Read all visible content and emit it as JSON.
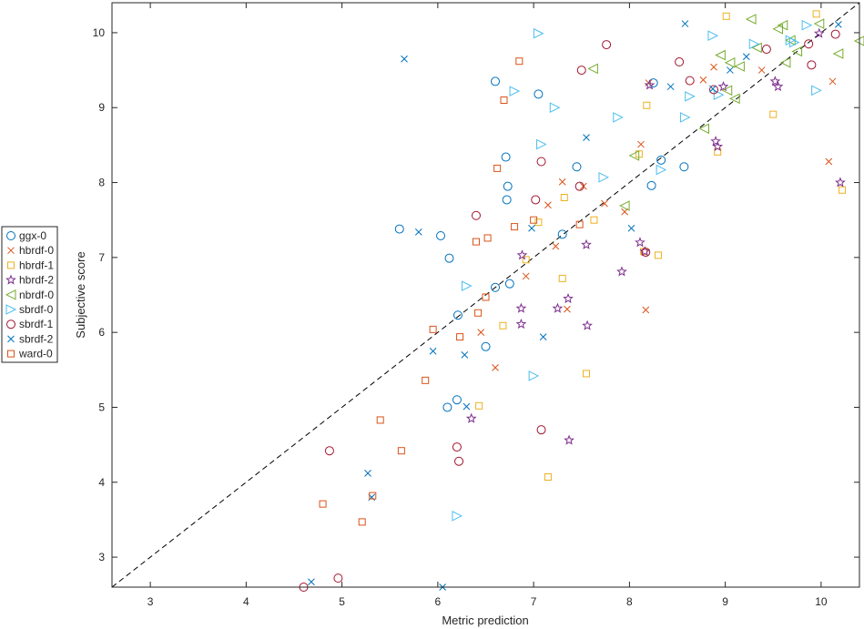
{
  "chart_data": {
    "type": "scatter",
    "xlabel": "Metric prediction",
    "ylabel": "Subjective score",
    "xlim": [
      2.6,
      10.4
    ],
    "ylim": [
      2.6,
      10.4
    ],
    "xticks": [
      3,
      4,
      5,
      6,
      7,
      8,
      9,
      10
    ],
    "yticks": [
      3,
      4,
      5,
      6,
      7,
      8,
      9,
      10
    ],
    "grid": false,
    "box": true,
    "reference_line": {
      "style": "dashed",
      "color": "#000000",
      "from": [
        2.6,
        2.6
      ],
      "to": [
        10.4,
        10.4
      ]
    },
    "legend_position": "outside-left",
    "series": [
      {
        "name": "ggx-0",
        "marker": "circle",
        "color": "#0072BD",
        "x": [
          5.6,
          6.03,
          6.12,
          6.21,
          6.1,
          6.2,
          6.5,
          6.6,
          6.6,
          6.72,
          6.71,
          6.73,
          6.75,
          7.05,
          7.3,
          7.45,
          8.25,
          8.33,
          8.23,
          8.57
        ],
        "y": [
          7.38,
          7.29,
          6.99,
          6.23,
          5.0,
          5.1,
          5.81,
          6.6,
          9.35,
          7.77,
          8.34,
          7.95,
          6.65,
          9.18,
          7.31,
          8.21,
          9.33,
          8.3,
          7.96,
          8.21
        ]
      },
      {
        "name": "hbrdf-0",
        "marker": "x",
        "color": "#D95319",
        "x": [
          6.45,
          6.6,
          6.92,
          7.15,
          7.23,
          7.3,
          7.35,
          7.52,
          7.74,
          7.95,
          8.12,
          8.17,
          8.2,
          8.77,
          8.88,
          9.38,
          10.12,
          10.08
        ],
        "y": [
          6.0,
          5.53,
          6.75,
          7.7,
          7.15,
          8.01,
          6.31,
          7.95,
          7.72,
          7.61,
          8.51,
          6.3,
          9.33,
          9.37,
          9.54,
          9.5,
          9.35,
          8.28
        ]
      },
      {
        "name": "hbrdf-1",
        "marker": "square",
        "color": "#EDB120",
        "x": [
          6.43,
          6.68,
          6.92,
          7.05,
          7.15,
          7.3,
          7.32,
          7.55,
          7.63,
          8.1,
          8.15,
          8.18,
          8.3,
          8.92,
          9.01,
          9.5,
          9.95,
          10.22
        ],
        "y": [
          5.02,
          6.09,
          6.97,
          7.47,
          4.07,
          6.72,
          7.8,
          5.45,
          7.5,
          8.38,
          7.08,
          9.03,
          7.03,
          8.41,
          10.22,
          8.91,
          10.25,
          7.9
        ]
      },
      {
        "name": "hbrdf-2",
        "marker": "star",
        "color": "#7E2F8E",
        "x": [
          6.35,
          6.87,
          6.87,
          6.88,
          7.25,
          7.36,
          7.37,
          7.55,
          7.56,
          7.92,
          8.11,
          8.16,
          8.21,
          8.9,
          8.92,
          8.98,
          9.52,
          9.55,
          9.98,
          10.2
        ],
        "y": [
          4.85,
          6.11,
          6.32,
          7.03,
          6.32,
          6.45,
          4.56,
          7.17,
          6.09,
          6.81,
          7.2,
          7.08,
          9.3,
          8.55,
          8.48,
          9.28,
          9.35,
          9.28,
          9.99,
          8.0
        ]
      },
      {
        "name": "nbrdf-0",
        "marker": "triangle-left",
        "color": "#77AC30",
        "x": [
          7.62,
          7.95,
          8.05,
          8.78,
          8.95,
          9.02,
          9.05,
          9.1,
          9.15,
          9.27,
          9.33,
          9.55,
          9.6,
          9.63,
          9.68,
          9.75,
          9.98,
          10.18,
          10.4
        ],
        "y": [
          9.52,
          7.69,
          8.36,
          8.72,
          9.7,
          9.23,
          9.6,
          9.12,
          9.55,
          10.18,
          9.8,
          10.05,
          10.1,
          9.6,
          9.9,
          9.75,
          10.12,
          9.72,
          9.89
        ]
      },
      {
        "name": "sbrdf-0",
        "marker": "triangle-right",
        "color": "#4DBEEE",
        "x": [
          6.2,
          6.3,
          6.8,
          7.0,
          7.05,
          7.08,
          7.22,
          7.73,
          7.88,
          8.33,
          8.58,
          8.63,
          8.87,
          8.93,
          9.3,
          9.68,
          9.72,
          9.85,
          9.95
        ],
        "y": [
          3.55,
          6.62,
          9.22,
          5.42,
          9.99,
          8.51,
          9.0,
          8.07,
          8.87,
          8.17,
          8.87,
          9.15,
          9.96,
          9.17,
          9.85,
          9.9,
          9.87,
          10.1,
          9.23
        ]
      },
      {
        "name": "sbrdf-1",
        "marker": "circle",
        "color": "#A2142F",
        "x": [
          4.6,
          4.87,
          4.96,
          6.2,
          6.22,
          6.4,
          7.02,
          7.08,
          7.08,
          7.48,
          7.5,
          7.76,
          8.17,
          8.52,
          8.63,
          8.88,
          9.43,
          9.9,
          9.87,
          10.15
        ],
        "y": [
          2.6,
          4.42,
          2.72,
          4.47,
          4.28,
          7.56,
          7.77,
          8.28,
          4.7,
          7.95,
          9.5,
          9.84,
          7.07,
          9.61,
          9.36,
          9.24,
          9.78,
          9.57,
          9.85,
          9.98
        ]
      },
      {
        "name": "sbrdf-2",
        "marker": "x",
        "color": "#0072BD",
        "x": [
          4.68,
          5.27,
          5.31,
          5.65,
          5.8,
          5.95,
          6.05,
          6.3,
          6.28,
          6.98,
          7.1,
          7.55,
          8.02,
          8.43,
          8.58,
          8.87,
          9.05,
          9.22,
          10.18
        ],
        "y": [
          2.67,
          4.12,
          3.8,
          9.65,
          7.34,
          5.75,
          2.6,
          5.01,
          5.7,
          7.39,
          5.94,
          8.6,
          7.39,
          9.28,
          10.12,
          9.25,
          9.5,
          9.68,
          10.11
        ]
      },
      {
        "name": "ward-0",
        "marker": "square",
        "color": "#D95319",
        "x": [
          4.8,
          5.21,
          5.32,
          5.4,
          5.62,
          5.87,
          5.95,
          6.23,
          6.4,
          6.42,
          6.5,
          6.52,
          6.62,
          6.69,
          6.8,
          6.85,
          7.0,
          7.48
        ],
        "y": [
          3.71,
          3.47,
          3.82,
          4.83,
          4.42,
          5.36,
          6.04,
          5.94,
          7.21,
          6.26,
          6.47,
          7.26,
          8.19,
          9.1,
          7.41,
          9.62,
          7.5,
          7.44
        ]
      }
    ]
  }
}
